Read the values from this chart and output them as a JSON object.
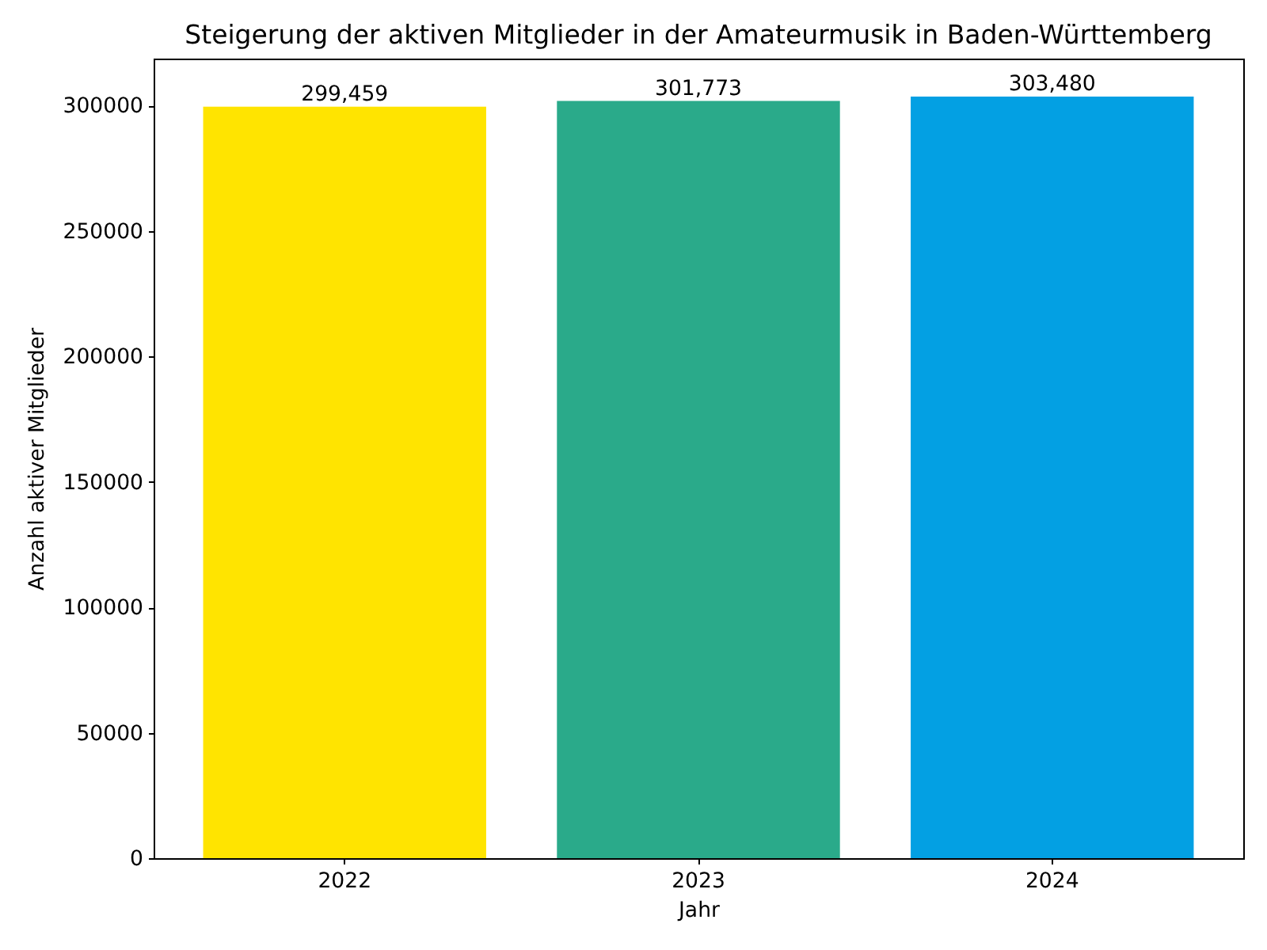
{
  "chart_data": {
    "type": "bar",
    "title": "Steigerung der aktiven Mitglieder in der Amateurmusik in Baden-Württemberg",
    "xlabel": "Jahr",
    "ylabel": "Anzahl aktiver Mitglieder",
    "categories": [
      "2022",
      "2023",
      "2024"
    ],
    "values": [
      299459,
      301773,
      303480
    ],
    "colors": [
      "#ffe400",
      "#2aaa8a",
      "#03a0e3"
    ],
    "value_labels": [
      "299,459",
      "301,773",
      "303,480"
    ],
    "ylim": [
      0,
      318654
    ],
    "yticks": [
      0,
      50000,
      100000,
      150000,
      200000,
      250000,
      300000
    ],
    "grid": false
  }
}
